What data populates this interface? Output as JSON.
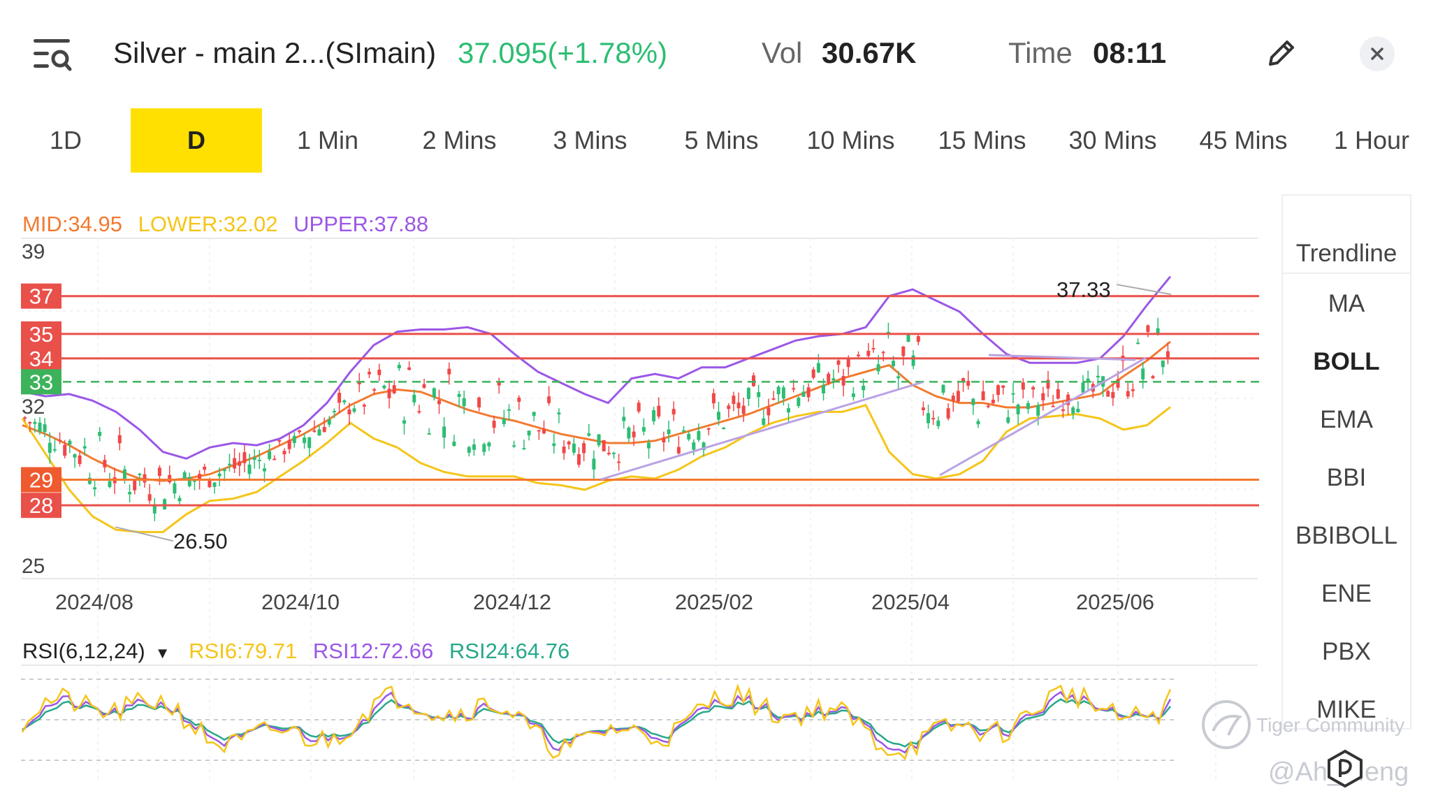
{
  "header": {
    "title": "Silver - main 2...(SImain)",
    "price": "37.095(+1.78%)",
    "vol_label": "Vol",
    "vol_value": "30.67K",
    "time_label": "Time",
    "time_value": "08:11"
  },
  "icons": {
    "menu": "menu-search-icon",
    "edit": "pencil-icon",
    "close": "close-icon",
    "dropdown": "triangle-down-icon"
  },
  "tabs": [
    {
      "label": "1D",
      "active": false
    },
    {
      "label": "D",
      "active": true
    },
    {
      "label": "1 Min",
      "active": false
    },
    {
      "label": "2 Mins",
      "active": false
    },
    {
      "label": "3 Mins",
      "active": false
    },
    {
      "label": "5 Mins",
      "active": false
    },
    {
      "label": "10 Mins",
      "active": false
    },
    {
      "label": "15 Mins",
      "active": false
    },
    {
      "label": "30 Mins",
      "active": false
    },
    {
      "label": "45 Mins",
      "active": false
    },
    {
      "label": "1 Hour",
      "active": false
    }
  ],
  "boll": {
    "mid": "MID:34.95",
    "lower": "LOWER:32.02",
    "upper": "UPPER:37.88"
  },
  "rsi": {
    "label": "RSI(6,12,24)",
    "rsi6": "RSI6:79.71",
    "rsi12": "RSI12:72.66",
    "rsi24": "RSI24:64.76"
  },
  "indicators": [
    "Trendline",
    "MA",
    "BOLL",
    "EMA",
    "BBI",
    "BBIBOLL",
    "ENE",
    "PBX",
    "MIKE"
  ],
  "active_indicator": "BOLL",
  "watermark": {
    "community": "Tiger Community",
    "user": "@Ah_Meng"
  },
  "colors": {
    "up": "#2dbd73",
    "down": "#f04848",
    "mid": "#f27a30",
    "lower": "#f5c518",
    "upper": "#9b57e6",
    "hline": "#e9504a",
    "hline_green": "#3cb35a",
    "trend": "#b9a2e3",
    "tab_active": "#ffe000"
  },
  "chart_data": {
    "type": "candlestick",
    "x_ticks": [
      "2024/08",
      "2024/10",
      "2024/12",
      "2025/02",
      "2025/04",
      "2025/06"
    ],
    "y_ticks": [
      "39",
      "32",
      "25"
    ],
    "ylim": [
      25,
      39
    ],
    "price_levels": [
      {
        "label": "37",
        "value": 37.0,
        "color": "red"
      },
      {
        "label": "35",
        "value": 35.3,
        "color": "red"
      },
      {
        "label": "34",
        "value": 34.2,
        "color": "red"
      },
      {
        "label": "33",
        "value": 33.15,
        "color": "green",
        "dashed": true
      },
      {
        "label": "29",
        "value": 28.75,
        "color": "orange"
      },
      {
        "label": "28",
        "value": 27.6,
        "color": "red"
      }
    ],
    "annotations": [
      {
        "text": "37.33",
        "value": 37.33
      },
      {
        "text": "26.50",
        "value": 26.5
      }
    ],
    "upper_band": [
      32.7,
      32.5,
      32.6,
      32.3,
      31.8,
      31.0,
      30.0,
      29.7,
      30.2,
      30.4,
      30.3,
      30.6,
      31.2,
      32.2,
      33.6,
      34.8,
      35.4,
      35.5,
      35.5,
      35.6,
      35.3,
      34.4,
      33.6,
      33.1,
      32.6,
      32.2,
      33.3,
      33.5,
      33.3,
      33.8,
      33.8,
      34.2,
      34.6,
      35.0,
      35.2,
      35.3,
      35.6,
      37.0,
      37.3,
      36.8,
      36.3,
      35.3,
      34.4,
      34.0,
      34.0,
      34.0,
      34.2,
      35.2,
      36.6,
      37.88
    ],
    "mid_band": [
      31.2,
      30.8,
      30.3,
      29.7,
      29.2,
      28.8,
      28.7,
      28.8,
      29.0,
      29.4,
      29.8,
      30.3,
      30.8,
      31.4,
      32.1,
      32.6,
      32.8,
      32.7,
      32.3,
      31.9,
      31.6,
      31.4,
      31.1,
      30.8,
      30.6,
      30.4,
      30.4,
      30.5,
      30.8,
      31.1,
      31.4,
      31.7,
      32.1,
      32.5,
      32.9,
      33.3,
      33.6,
      33.9,
      33.0,
      32.5,
      32.2,
      32.2,
      32.0,
      32.0,
      32.2,
      32.4,
      32.6,
      33.4,
      34.1,
      34.95
    ],
    "lower_band": [
      31.5,
      29.9,
      28.3,
      27.1,
      26.5,
      26.4,
      26.4,
      27.2,
      27.8,
      27.9,
      28.2,
      28.9,
      29.6,
      30.4,
      31.3,
      30.6,
      30.2,
      29.5,
      29.1,
      28.9,
      28.9,
      28.9,
      28.6,
      28.5,
      28.3,
      28.7,
      28.9,
      28.8,
      29.2,
      29.8,
      30.2,
      30.8,
      31.3,
      31.6,
      31.8,
      31.8,
      32.1,
      30.0,
      29.0,
      28.8,
      29.0,
      29.6,
      30.9,
      31.5,
      31.6,
      31.7,
      31.5,
      31.0,
      31.2,
      32.02
    ],
    "rsi_ylim": [
      0,
      100
    ]
  }
}
